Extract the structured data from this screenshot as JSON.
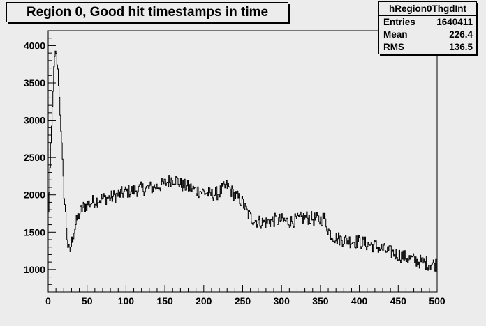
{
  "title": "Region 0, Good hit timestamps in time",
  "stats": {
    "name": "hRegion0ThgdInt",
    "rows": [
      {
        "label": "Entries",
        "value": "1640411"
      },
      {
        "label": "Mean",
        "value": "226.4"
      },
      {
        "label": "RMS",
        "value": "136.5"
      }
    ]
  },
  "colors": {
    "background": "#ececec",
    "frame": "#000000",
    "line": "#000000"
  },
  "chart_data": {
    "type": "line",
    "style": "step histogram",
    "title": "Region 0, Good hit timestamps in time",
    "xlabel": "",
    "ylabel": "",
    "xlim": [
      0,
      500
    ],
    "ylim": [
      700,
      4200
    ],
    "grid": false,
    "x_ticks": [
      0,
      50,
      100,
      150,
      200,
      250,
      300,
      350,
      400,
      450,
      500
    ],
    "y_ticks": [
      1000,
      1500,
      2000,
      2500,
      3000,
      3500,
      4000
    ],
    "bin_width": 1,
    "series": [
      {
        "anchors_x": [
          0,
          3,
          6,
          8,
          10,
          13,
          16,
          20,
          24,
          26,
          28,
          30,
          33,
          36,
          40,
          45,
          50,
          60,
          70,
          80,
          90,
          100,
          110,
          120,
          130,
          140,
          150,
          160,
          165,
          170,
          180,
          190,
          200,
          210,
          220,
          225,
          230,
          240,
          250,
          255,
          260,
          270,
          280,
          290,
          300,
          310,
          320,
          330,
          340,
          350,
          355,
          360,
          365,
          370,
          380,
          390,
          400,
          410,
          420,
          430,
          440,
          450,
          460,
          470,
          480,
          490,
          500
        ],
        "anchors_y": [
          1600,
          2500,
          3300,
          3800,
          3920,
          3600,
          3000,
          2100,
          1500,
          1260,
          1220,
          1350,
          1500,
          1620,
          1750,
          1830,
          1870,
          1920,
          1950,
          1960,
          2000,
          2040,
          2060,
          2080,
          2090,
          2110,
          2150,
          2220,
          2200,
          2140,
          2100,
          2060,
          2040,
          2000,
          2030,
          2080,
          2120,
          2000,
          1900,
          1780,
          1700,
          1640,
          1630,
          1660,
          1660,
          1640,
          1660,
          1700,
          1680,
          1660,
          1700,
          1530,
          1460,
          1420,
          1400,
          1380,
          1370,
          1340,
          1320,
          1270,
          1230,
          1200,
          1160,
          1130,
          1100,
          1080,
          1070
        ],
        "noise": 95
      }
    ]
  }
}
